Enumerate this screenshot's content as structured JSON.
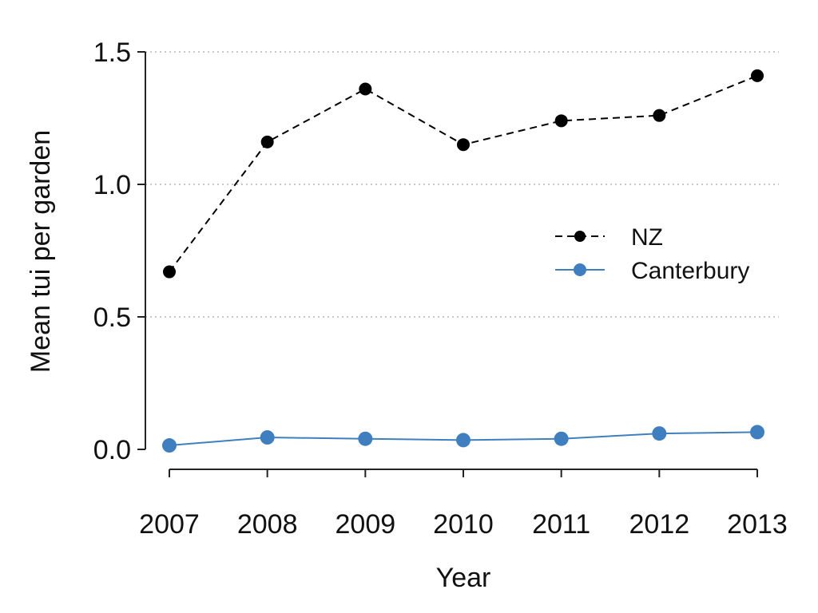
{
  "chart_data": {
    "type": "line",
    "title": "",
    "xlabel": "Year",
    "ylabel": "Mean tui per garden",
    "x": [
      2007,
      2008,
      2009,
      2010,
      2011,
      2012,
      2013
    ],
    "x_tick_labels": [
      "2007",
      "2008",
      "2009",
      "2010",
      "2011",
      "2012",
      "2013"
    ],
    "ylim": [
      0,
      1.5
    ],
    "y_ticks": [
      0,
      0.5,
      1.0,
      1.5
    ],
    "y_tick_labels": [
      "0.0",
      "0.5",
      "1.0",
      "1.5"
    ],
    "grid": "horizontal-dotted",
    "legend_position": "right",
    "series": [
      {
        "name": "NZ",
        "values": [
          0.67,
          1.16,
          1.36,
          1.15,
          1.24,
          1.26,
          1.41
        ],
        "color": "#000000",
        "line_style": "dashed"
      },
      {
        "name": "Canterbury",
        "values": [
          0.015,
          0.045,
          0.04,
          0.035,
          0.04,
          0.06,
          0.065
        ],
        "color": "#3f7fbf",
        "line_style": "solid"
      }
    ]
  }
}
